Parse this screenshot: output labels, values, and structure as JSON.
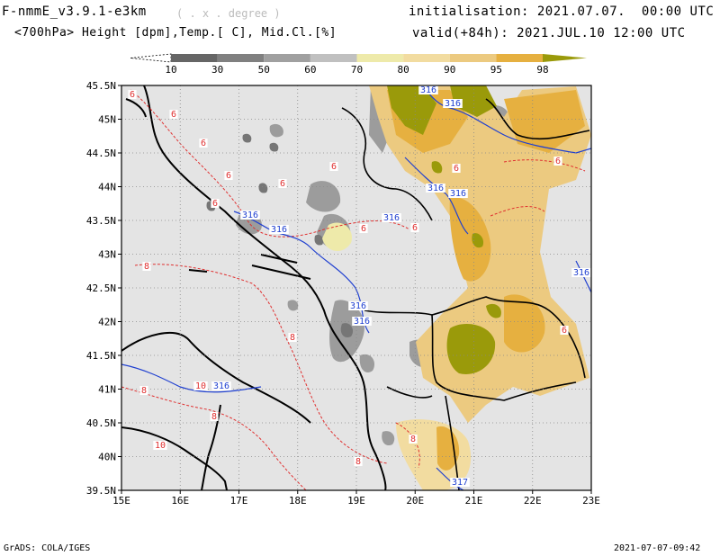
{
  "header": {
    "model_title": "F-nmmE_v3.9.1-e3km",
    "units_note": "( . x . degree )",
    "field_desc": "<700hPa> Height [dpm],Temp.[ C], Mid.Cl.[%]",
    "init_line": "initialisation: 2021.07.07.  00:00 UTC",
    "valid_line": "valid(+84h): 2021.JUL.10 12:00 UTC"
  },
  "colorbar": {
    "levels": [
      "10",
      "30",
      "50",
      "60",
      "70",
      "80",
      "90",
      "95",
      "98"
    ],
    "colors": [
      "#666666",
      "#808080",
      "#a0a0a0",
      "#c0c0c0",
      "#eeeaaa",
      "#f2dca0",
      "#ecca80",
      "#e6b040",
      "#9a9a0a"
    ],
    "under_color": "#ffffff",
    "over_color": "#9a9a0a"
  },
  "map": {
    "lon_labels": [
      "15E",
      "16E",
      "17E",
      "18E",
      "19E",
      "20E",
      "21E",
      "22E",
      "23E"
    ],
    "lat_labels": [
      "45.5N",
      "45N",
      "44.5N",
      "44N",
      "43.5N",
      "43N",
      "42.5N",
      "42N",
      "41.5N",
      "41N",
      "40.5N",
      "40N",
      "39.5N"
    ],
    "background": "#e4e4e4",
    "height_color": "#2040d0",
    "temp_color": "#e03030",
    "height_contour_label": "316",
    "height_contour_label_se": "317",
    "temp_contour_labels": [
      "6",
      "8",
      "10"
    ]
  },
  "footer": {
    "credit": "GrADS: COLA/IGES",
    "timestamp": "2021-07-07-09:42"
  }
}
